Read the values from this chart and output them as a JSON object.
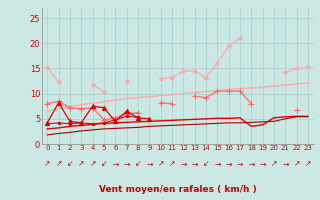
{
  "xlabel": "Vent moyen/en rafales ( km/h )",
  "bg_color": "#cce8e4",
  "grid_color": "#aad4d0",
  "ylim": [
    0,
    27
  ],
  "yticks": [
    0,
    5,
    10,
    15,
    20,
    25
  ],
  "lines": [
    {
      "color": "#ffaaaa",
      "marker": "D",
      "markersize": 2.0,
      "linewidth": 0.9,
      "y": [
        15.2,
        12.3,
        null,
        null,
        11.8,
        10.4,
        null,
        12.5,
        null,
        null,
        13.0,
        13.2,
        14.5,
        14.5,
        13.2,
        16.0,
        19.5,
        21.0,
        null,
        null,
        null,
        14.2,
        15.0,
        15.2
      ]
    },
    {
      "color": "#ffaaaa",
      "marker": null,
      "linewidth": 1.0,
      "y": [
        6.5,
        7.0,
        7.5,
        7.8,
        8.1,
        8.4,
        8.7,
        9.0,
        9.2,
        9.4,
        9.6,
        9.8,
        10.0,
        10.2,
        10.4,
        10.6,
        10.8,
        11.0,
        11.1,
        11.3,
        11.5,
        11.7,
        11.9,
        12.1
      ]
    },
    {
      "color": "#ff6666",
      "marker": "+",
      "markersize": 4,
      "linewidth": 0.9,
      "y": [
        8.0,
        8.5,
        7.2,
        7.0,
        7.2,
        4.8,
        5.2,
        6.0,
        6.2,
        null,
        8.2,
        8.0,
        null,
        9.5,
        9.2,
        10.5,
        10.5,
        10.5,
        8.0,
        null,
        null,
        null,
        6.8,
        null
      ]
    },
    {
      "color": "#dd0000",
      "marker": "^",
      "markersize": 3.0,
      "linewidth": 0.9,
      "y": [
        4.2,
        8.2,
        4.5,
        4.2,
        7.5,
        7.2,
        4.5,
        6.5,
        5.2,
        5.0,
        null,
        null,
        null,
        null,
        null,
        null,
        null,
        null,
        null,
        null,
        null,
        null,
        null,
        null
      ]
    },
    {
      "color": "#dd0000",
      "marker": null,
      "linewidth": 1.0,
      "y": [
        3.0,
        3.2,
        3.5,
        3.7,
        3.9,
        4.1,
        4.2,
        4.3,
        4.4,
        4.5,
        4.6,
        4.7,
        4.8,
        4.9,
        5.0,
        5.1,
        5.1,
        5.2,
        3.5,
        3.8,
        5.2,
        5.4,
        5.5,
        5.5
      ]
    },
    {
      "color": "#dd0000",
      "marker": "s",
      "markersize": 2.0,
      "linewidth": 0.8,
      "y": [
        4.0,
        4.2,
        4.0,
        4.2,
        4.0,
        4.2,
        4.8,
        5.5,
        5.3,
        null,
        null,
        null,
        null,
        null,
        null,
        null,
        null,
        null,
        null,
        null,
        null,
        null,
        null,
        null
      ]
    },
    {
      "color": "#aa0000",
      "marker": null,
      "linewidth": 0.8,
      "y": [
        1.8,
        2.1,
        2.3,
        2.6,
        2.8,
        3.0,
        3.1,
        3.2,
        3.3,
        3.5,
        3.6,
        3.7,
        3.8,
        3.9,
        4.0,
        4.1,
        4.2,
        4.2,
        4.3,
        4.4,
        4.5,
        5.0,
        5.4,
        5.4
      ]
    }
  ],
  "arrow_symbols": [
    "↗",
    "↗",
    "↙",
    "↗",
    "↗",
    "↙",
    "→",
    "→",
    "↙",
    "→",
    "↗",
    "↗",
    "→",
    "→",
    "↙",
    "→",
    "→",
    "→",
    "→",
    "→",
    "↗",
    "→",
    "↗",
    "↗"
  ]
}
